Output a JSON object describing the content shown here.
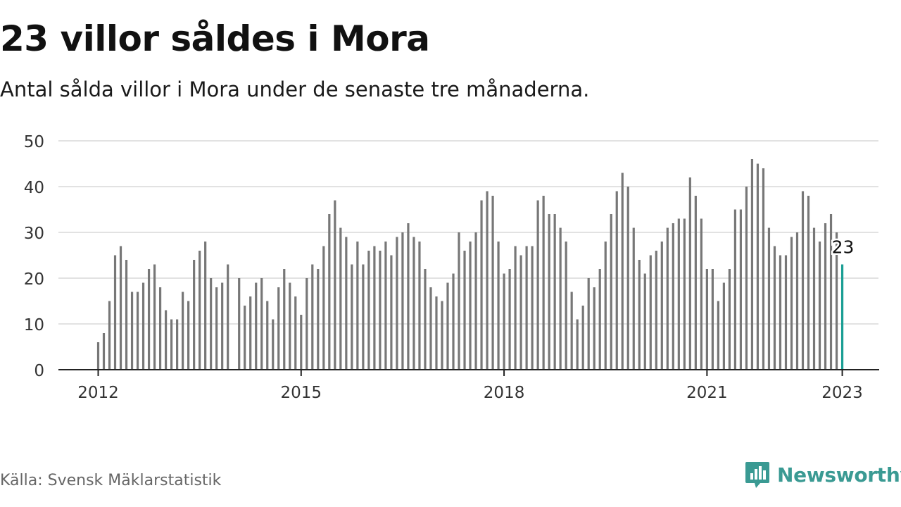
{
  "header": {
    "title": "23 villor såldes i Mora",
    "subtitle": "Antal sålda villor i Mora under de senaste tre månaderna."
  },
  "footer": {
    "source": "Källa: Svensk Mäklarstatistik",
    "brand": "Newsworthy",
    "brand_icon": "chart-bubble-icon"
  },
  "colors": {
    "bar": "#777777",
    "highlight": "#1a9e94",
    "grid": "#d9d9d9",
    "axis": "#222222",
    "brand": "#3a9a93"
  },
  "chart_data": {
    "type": "bar",
    "title": "",
    "xlabel": "",
    "ylabel": "",
    "ylim": [
      0,
      50
    ],
    "yticks": [
      0,
      10,
      20,
      30,
      40,
      50
    ],
    "grid": true,
    "start": "2012-01",
    "xticks": [
      "2012",
      "2015",
      "2018",
      "2021",
      "2023"
    ],
    "values": [
      6,
      8,
      15,
      25,
      27,
      24,
      17,
      17,
      19,
      22,
      23,
      18,
      13,
      11,
      11,
      17,
      15,
      24,
      26,
      28,
      20,
      18,
      19,
      23,
      null,
      20,
      14,
      16,
      19,
      20,
      15,
      11,
      18,
      22,
      19,
      16,
      12,
      20,
      23,
      22,
      27,
      34,
      37,
      31,
      29,
      23,
      28,
      23,
      26,
      27,
      26,
      28,
      25,
      29,
      30,
      32,
      29,
      28,
      22,
      18,
      16,
      15,
      19,
      21,
      30,
      26,
      28,
      30,
      37,
      39,
      38,
      28,
      21,
      22,
      27,
      25,
      27,
      27,
      37,
      38,
      34,
      34,
      31,
      28,
      17,
      11,
      14,
      20,
      18,
      22,
      28,
      34,
      39,
      43,
      40,
      31,
      24,
      21,
      25,
      26,
      28,
      31,
      32,
      33,
      33,
      42,
      38,
      33,
      22,
      22,
      15,
      19,
      22,
      35,
      35,
      40,
      46,
      45,
      44,
      31,
      27,
      25,
      25,
      29,
      30,
      39,
      38,
      31,
      28,
      32,
      34,
      30,
      23
    ],
    "highlight": {
      "index": 132,
      "label": "23"
    }
  }
}
